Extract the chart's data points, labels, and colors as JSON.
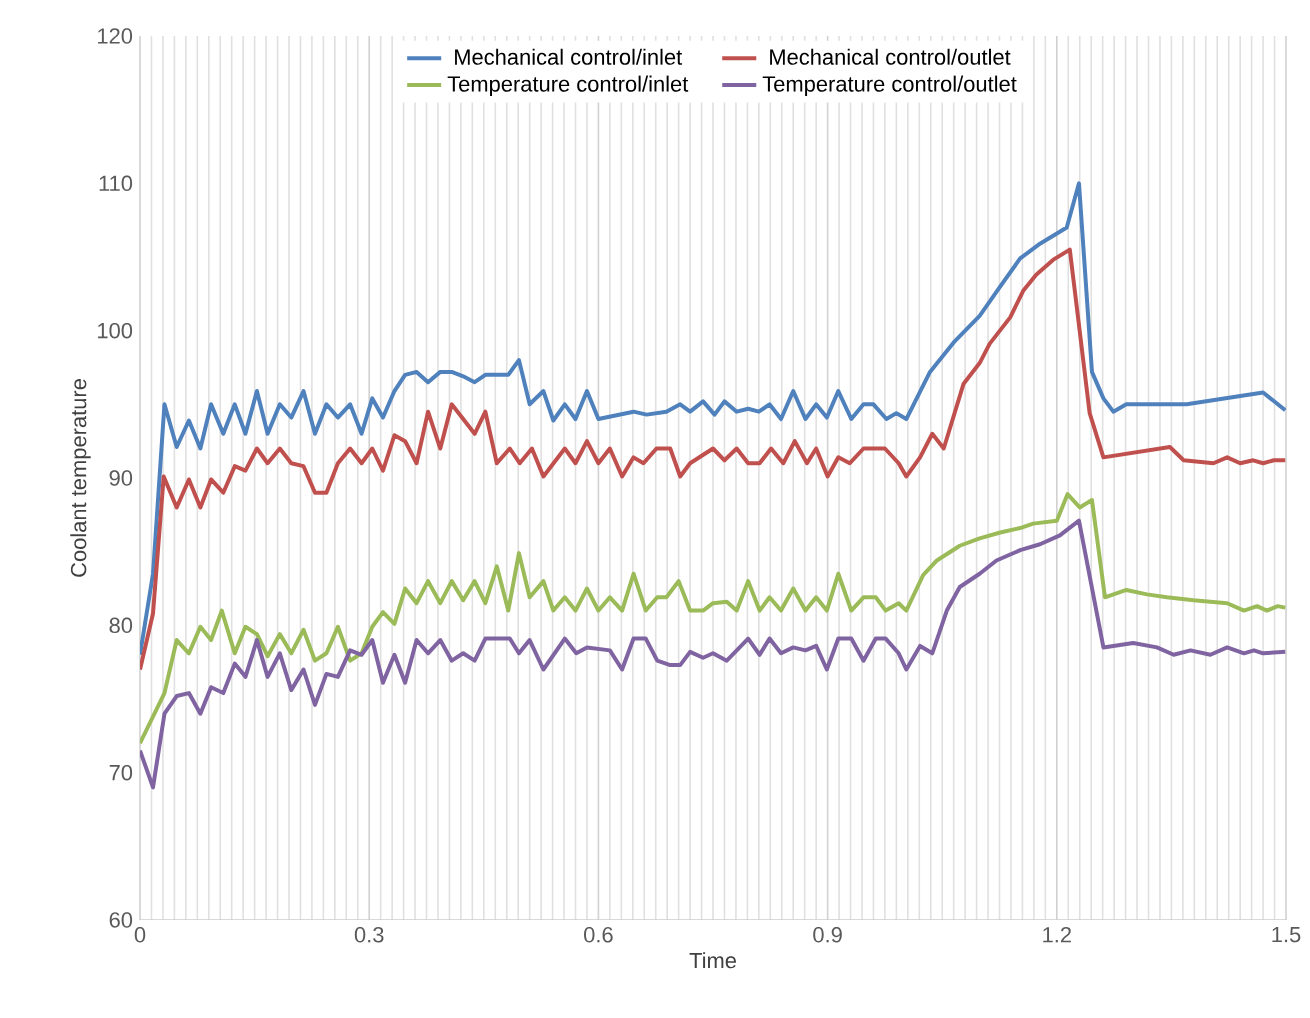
{
  "chart_data": {
    "type": "line",
    "xlabel": "Time",
    "ylabel": "Coolant temperature",
    "xlim": [
      0,
      1.5
    ],
    "xticks": [
      0,
      0.3,
      0.6,
      0.9,
      1.2,
      1.5
    ],
    "ylim": [
      60,
      120
    ],
    "yticks": [
      60,
      70,
      80,
      90,
      100,
      110,
      120
    ],
    "grid": "x",
    "legend": "top",
    "series": [
      {
        "name": "Mechanical control/inlet",
        "color": "#4f81bd",
        "x": [
          0.0,
          0.017,
          0.032,
          0.048,
          0.064,
          0.079,
          0.093,
          0.109,
          0.124,
          0.138,
          0.153,
          0.167,
          0.183,
          0.198,
          0.214,
          0.229,
          0.244,
          0.259,
          0.275,
          0.29,
          0.304,
          0.318,
          0.333,
          0.347,
          0.362,
          0.377,
          0.393,
          0.408,
          0.423,
          0.438,
          0.452,
          0.482,
          0.496,
          0.51,
          0.528,
          0.541,
          0.556,
          0.57,
          0.585,
          0.6,
          0.646,
          0.663,
          0.689,
          0.707,
          0.72,
          0.737,
          0.752,
          0.765,
          0.781,
          0.796,
          0.81,
          0.824,
          0.839,
          0.855,
          0.871,
          0.885,
          0.899,
          0.914,
          0.931,
          0.947,
          0.96,
          0.977,
          0.99,
          1.003,
          1.034,
          1.065,
          1.099,
          1.126,
          1.152,
          1.178,
          1.213,
          1.229,
          1.246,
          1.261,
          1.274,
          1.291,
          1.318,
          1.37,
          1.47,
          1.499
        ],
        "values": [
          78,
          83.5,
          95.0,
          92.1,
          93.9,
          92.0,
          95.0,
          93.0,
          95.0,
          93.0,
          95.9,
          93.0,
          95.0,
          94.1,
          95.9,
          93.0,
          95.0,
          94.1,
          95.0,
          93.0,
          95.4,
          94.1,
          95.9,
          97.0,
          97.2,
          96.5,
          97.2,
          97.2,
          96.9,
          96.5,
          97.0,
          97.0,
          98.0,
          95.0,
          95.9,
          93.9,
          95.0,
          94.0,
          95.9,
          94.0,
          94.5,
          94.3,
          94.5,
          95.0,
          94.5,
          95.2,
          94.3,
          95.2,
          94.5,
          94.7,
          94.5,
          95.0,
          94.0,
          95.9,
          94.0,
          95.0,
          94.1,
          95.9,
          94.0,
          95.0,
          95.0,
          94.0,
          94.4,
          94.0,
          97.2,
          99.2,
          101.0,
          103.0,
          104.9,
          105.9,
          107.0,
          110.0,
          97.2,
          95.4,
          94.5,
          95.0,
          95.0,
          95.0,
          95.8,
          94.6
        ]
      },
      {
        "name": "Mechanical control/outlet",
        "color": "#c0504d",
        "x": [
          0.0,
          0.017,
          0.031,
          0.048,
          0.064,
          0.079,
          0.093,
          0.109,
          0.124,
          0.138,
          0.153,
          0.167,
          0.183,
          0.198,
          0.214,
          0.229,
          0.244,
          0.259,
          0.275,
          0.29,
          0.304,
          0.318,
          0.333,
          0.347,
          0.362,
          0.377,
          0.393,
          0.408,
          0.423,
          0.438,
          0.452,
          0.467,
          0.484,
          0.497,
          0.513,
          0.528,
          0.556,
          0.57,
          0.585,
          0.6,
          0.615,
          0.631,
          0.646,
          0.659,
          0.676,
          0.694,
          0.707,
          0.72,
          0.75,
          0.765,
          0.781,
          0.796,
          0.811,
          0.826,
          0.842,
          0.857,
          0.873,
          0.885,
          0.9,
          0.914,
          0.929,
          0.947,
          0.975,
          0.993,
          1.003,
          1.021,
          1.037,
          1.052,
          1.078,
          1.099,
          1.112,
          1.139,
          1.156,
          1.173,
          1.195,
          1.217,
          1.243,
          1.261,
          1.348,
          1.366,
          1.405,
          1.423,
          1.44,
          1.457,
          1.47,
          1.484,
          1.499
        ],
        "values": [
          77.0,
          80.8,
          90.1,
          88.0,
          89.9,
          88.0,
          89.9,
          89.0,
          90.8,
          90.5,
          92.0,
          91.0,
          92.0,
          91.0,
          90.8,
          89.0,
          89.0,
          91.0,
          92.0,
          91.0,
          92.0,
          90.5,
          92.9,
          92.5,
          91.0,
          94.5,
          92.0,
          95.0,
          94.0,
          93.0,
          94.5,
          91.0,
          92.0,
          91.0,
          92.0,
          90.1,
          92.0,
          91.0,
          92.5,
          91.0,
          92.0,
          90.1,
          91.4,
          91.0,
          92.0,
          92.0,
          90.1,
          91.0,
          92.0,
          91.2,
          92.0,
          91.0,
          91.0,
          92.0,
          91.0,
          92.5,
          91.0,
          92.0,
          90.1,
          91.4,
          91.0,
          92.0,
          92.0,
          91.0,
          90.1,
          91.4,
          93.0,
          92.0,
          96.4,
          97.8,
          99.1,
          100.9,
          102.7,
          103.8,
          104.8,
          105.5,
          94.4,
          91.4,
          92.1,
          91.2,
          91.0,
          91.4,
          91.0,
          91.2,
          91.0,
          91.2,
          91.2
        ]
      },
      {
        "name": "Temperature control/inlet",
        "color": "#9bbb59",
        "x": [
          0.0,
          0.032,
          0.048,
          0.064,
          0.079,
          0.093,
          0.107,
          0.124,
          0.138,
          0.153,
          0.167,
          0.183,
          0.198,
          0.214,
          0.229,
          0.244,
          0.259,
          0.275,
          0.29,
          0.304,
          0.318,
          0.333,
          0.347,
          0.362,
          0.377,
          0.393,
          0.408,
          0.423,
          0.438,
          0.452,
          0.467,
          0.482,
          0.496,
          0.51,
          0.528,
          0.541,
          0.556,
          0.57,
          0.585,
          0.6,
          0.615,
          0.631,
          0.646,
          0.662,
          0.677,
          0.689,
          0.705,
          0.72,
          0.737,
          0.75,
          0.768,
          0.781,
          0.796,
          0.811,
          0.824,
          0.839,
          0.855,
          0.871,
          0.885,
          0.899,
          0.914,
          0.931,
          0.947,
          0.963,
          0.976,
          0.993,
          1.003,
          1.025,
          1.043,
          1.073,
          1.099,
          1.126,
          1.152,
          1.169,
          1.2,
          1.214,
          1.23,
          1.246,
          1.263,
          1.291,
          1.318,
          1.344,
          1.379,
          1.423,
          1.445,
          1.462,
          1.475,
          1.489,
          1.499
        ],
        "values": [
          72.0,
          75.4,
          79.0,
          78.1,
          79.9,
          79.0,
          81.0,
          78.1,
          79.9,
          79.4,
          77.9,
          79.4,
          78.1,
          79.7,
          77.6,
          78.1,
          79.9,
          77.6,
          78.1,
          79.9,
          80.9,
          80.1,
          82.5,
          81.5,
          83.0,
          81.5,
          83.0,
          81.7,
          83.0,
          81.5,
          84.0,
          81.0,
          84.9,
          81.9,
          83.0,
          81.0,
          81.9,
          81.0,
          82.5,
          81.0,
          81.9,
          81.0,
          83.5,
          81.0,
          81.9,
          81.9,
          83.0,
          81.0,
          81.0,
          81.5,
          81.6,
          81.0,
          83.0,
          81.0,
          81.9,
          81.0,
          82.5,
          81.0,
          81.9,
          81.0,
          83.5,
          81.0,
          81.9,
          81.9,
          81.0,
          81.5,
          81.0,
          83.4,
          84.4,
          85.4,
          85.9,
          86.3,
          86.6,
          86.9,
          87.1,
          88.9,
          88.0,
          88.5,
          81.9,
          82.4,
          82.1,
          81.9,
          81.7,
          81.5,
          81.0,
          81.3,
          81.0,
          81.3,
          81.2
        ]
      },
      {
        "name": "Temperature control/outlet",
        "color": "#8064a2",
        "x": [
          0.0,
          0.017,
          0.032,
          0.048,
          0.064,
          0.079,
          0.093,
          0.109,
          0.124,
          0.138,
          0.153,
          0.167,
          0.183,
          0.198,
          0.214,
          0.229,
          0.244,
          0.259,
          0.275,
          0.29,
          0.304,
          0.318,
          0.333,
          0.347,
          0.362,
          0.377,
          0.393,
          0.408,
          0.423,
          0.438,
          0.452,
          0.484,
          0.496,
          0.51,
          0.528,
          0.556,
          0.571,
          0.585,
          0.615,
          0.631,
          0.646,
          0.662,
          0.677,
          0.694,
          0.707,
          0.72,
          0.737,
          0.75,
          0.768,
          0.796,
          0.811,
          0.824,
          0.839,
          0.855,
          0.871,
          0.885,
          0.899,
          0.914,
          0.931,
          0.947,
          0.963,
          0.976,
          0.993,
          1.003,
          1.021,
          1.037,
          1.056,
          1.073,
          1.099,
          1.121,
          1.152,
          1.178,
          1.204,
          1.229,
          1.261,
          1.3,
          1.331,
          1.353,
          1.375,
          1.401,
          1.423,
          1.445,
          1.458,
          1.47,
          1.499
        ],
        "values": [
          71.5,
          69.0,
          74.0,
          75.2,
          75.4,
          74.0,
          75.8,
          75.4,
          77.4,
          76.5,
          79.0,
          76.5,
          78.1,
          75.6,
          77.0,
          74.6,
          76.7,
          76.5,
          78.3,
          78.0,
          79.0,
          76.1,
          78.0,
          76.1,
          79.0,
          78.1,
          79.0,
          77.6,
          78.1,
          77.6,
          79.1,
          79.1,
          78.1,
          79.0,
          77.0,
          79.1,
          78.1,
          78.5,
          78.3,
          77.0,
          79.1,
          79.1,
          77.6,
          77.3,
          77.3,
          78.2,
          77.8,
          78.1,
          77.6,
          79.1,
          78.0,
          79.1,
          78.1,
          78.5,
          78.3,
          78.6,
          77.0,
          79.1,
          79.1,
          77.6,
          79.1,
          79.1,
          78.1,
          77.0,
          78.6,
          78.1,
          81.0,
          82.6,
          83.5,
          84.4,
          85.1,
          85.5,
          86.1,
          87.1,
          78.5,
          78.8,
          78.5,
          78.0,
          78.3,
          78.0,
          78.5,
          78.1,
          78.3,
          78.1,
          78.2
        ]
      }
    ]
  }
}
